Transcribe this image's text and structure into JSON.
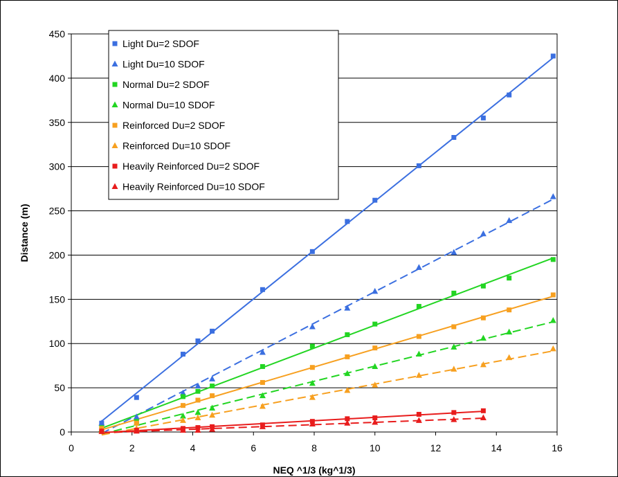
{
  "chart_data": {
    "type": "scatter",
    "title": "",
    "xlabel": "NEQ ^1/3 (kg^1/3)",
    "ylabel": "Distance (m)",
    "xlim": [
      0,
      16
    ],
    "ylim": [
      0,
      450
    ],
    "x_ticks": [
      "0",
      "2",
      "4",
      "6",
      "8",
      "10",
      "12",
      "14",
      "16"
    ],
    "y_ticks": [
      "0",
      "50",
      "100",
      "150",
      "200",
      "250",
      "300",
      "350",
      "400",
      "450"
    ],
    "grid": "horizontal",
    "legend_position": "top-left",
    "trendlines": "linear fit per series (solid for Du=2, dashed for Du=10)",
    "series": [
      {
        "name": "Light Du=2 SDOF",
        "marker": "square",
        "color": "#3b6fe0",
        "line": "solid",
        "x": [
          1.0,
          2.15,
          3.68,
          4.17,
          4.64,
          6.3,
          7.94,
          9.09,
          10.0,
          11.45,
          12.6,
          13.57,
          14.42,
          15.87
        ],
        "y": [
          10,
          39,
          88,
          103,
          114,
          161,
          204,
          238,
          262,
          301,
          333,
          355,
          381,
          425
        ]
      },
      {
        "name": "Light Du=10 SDOF",
        "marker": "triangle",
        "color": "#3b6fe0",
        "line": "dashed",
        "x": [
          1.0,
          2.15,
          3.68,
          4.17,
          4.64,
          6.3,
          7.94,
          9.09,
          10.0,
          11.45,
          12.6,
          13.57,
          14.42,
          15.87
        ],
        "y": [
          10,
          17,
          44,
          52,
          60,
          90,
          119,
          140,
          159,
          186,
          203,
          224,
          239,
          266
        ]
      },
      {
        "name": "Normal Du=2 SDOF",
        "marker": "square",
        "color": "#22d522",
        "line": "solid",
        "x": [
          1.0,
          2.15,
          3.68,
          4.17,
          4.64,
          6.3,
          7.94,
          9.09,
          10.0,
          11.45,
          12.6,
          13.57,
          14.42,
          15.87
        ],
        "y": [
          5,
          12,
          40,
          46,
          52,
          74,
          97,
          110,
          122,
          142,
          157,
          165,
          174,
          195
        ]
      },
      {
        "name": "Normal Du=10 SDOF",
        "marker": "triangle",
        "color": "#22d522",
        "line": "dashed",
        "x": [
          1.0,
          2.15,
          3.68,
          4.17,
          4.64,
          6.3,
          7.94,
          9.09,
          10.0,
          11.45,
          12.6,
          13.57,
          14.42,
          15.87
        ],
        "y": [
          3,
          10,
          18,
          22,
          27,
          41,
          55,
          66,
          74,
          88,
          96,
          106,
          113,
          126
        ]
      },
      {
        "name": "Reinforced Du=2 SDOF",
        "marker": "square",
        "color": "#f7a020",
        "line": "solid",
        "x": [
          1.0,
          2.15,
          3.68,
          4.17,
          4.64,
          6.3,
          7.94,
          9.09,
          10.0,
          11.45,
          12.6,
          13.57,
          14.42,
          15.87
        ],
        "y": [
          4,
          10,
          30,
          36,
          41,
          56,
          73,
          85,
          95,
          108,
          119,
          129,
          138,
          155
        ]
      },
      {
        "name": "Reinforced Du=10 SDOF",
        "marker": "triangle",
        "color": "#f7a020",
        "line": "dashed",
        "x": [
          1.0,
          2.15,
          3.68,
          4.17,
          4.64,
          6.3,
          7.94,
          9.09,
          10.0,
          11.45,
          12.6,
          13.57,
          14.42,
          15.87
        ],
        "y": [
          2,
          4,
          13,
          16,
          19,
          29,
          39,
          47,
          53,
          64,
          71,
          76,
          84,
          94
        ]
      },
      {
        "name": "Heavily Reinforced Du=2 SDOF",
        "marker": "square",
        "color": "#e81c1c",
        "line": "solid",
        "x": [
          1.0,
          2.15,
          3.68,
          4.17,
          4.64,
          6.3,
          7.94,
          9.09,
          10.0,
          11.45,
          12.6,
          13.57
        ],
        "y": [
          1,
          2,
          4,
          5,
          6,
          8,
          12,
          15,
          16,
          20,
          22,
          24
        ]
      },
      {
        "name": "Heavily Reinforced Du=10 SDOF",
        "marker": "triangle",
        "color": "#e81c1c",
        "line": "dashed",
        "x": [
          1.0,
          2.15,
          3.68,
          4.17,
          4.64,
          6.3,
          7.94,
          9.09,
          10.0,
          11.45,
          12.6,
          13.57
        ],
        "y": [
          0.5,
          1,
          2,
          2,
          3,
          6,
          9,
          10,
          11,
          13,
          14,
          16
        ]
      }
    ]
  }
}
